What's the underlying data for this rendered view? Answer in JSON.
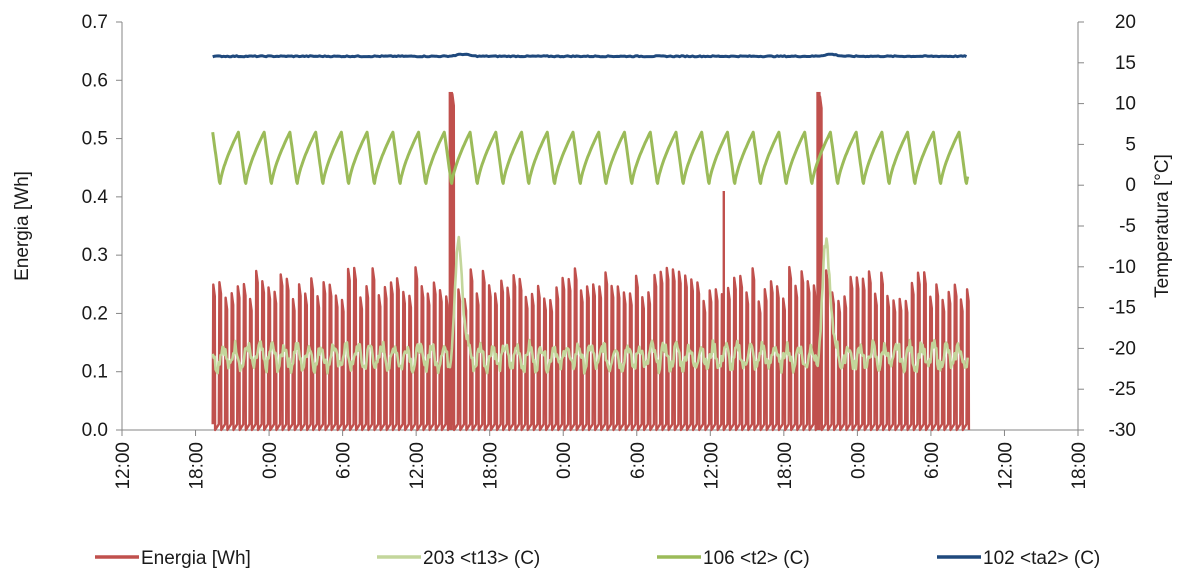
{
  "chart_data": {
    "type": "line",
    "title": "",
    "ylabel": "Energia [Wh]",
    "y2label": "Temperatura [°C]",
    "ylim": [
      0,
      0.7
    ],
    "y2lim": [
      -30,
      20
    ],
    "yticks": [
      "0.0",
      "0.1",
      "0.2",
      "0.3",
      "0.4",
      "0.5",
      "0.6",
      "0.7"
    ],
    "y2ticks": [
      "-30",
      "-25",
      "-20",
      "-15",
      "-10",
      "-5",
      "0",
      "5",
      "10",
      "15",
      "20"
    ],
    "x_unit": "hours",
    "xlim": [
      12,
      90
    ],
    "xticks": [
      {
        "t": 12,
        "label": "12:00"
      },
      {
        "t": 18,
        "label": "18:00"
      },
      {
        "t": 24,
        "label": "0:00"
      },
      {
        "t": 30,
        "label": "6:00"
      },
      {
        "t": 36,
        "label": "12:00"
      },
      {
        "t": 42,
        "label": "18:00"
      },
      {
        "t": 48,
        "label": "0:00"
      },
      {
        "t": 54,
        "label": "6:00"
      },
      {
        "t": 60,
        "label": "12:00"
      },
      {
        "t": 66,
        "label": "18:00"
      },
      {
        "t": 72,
        "label": "0:00"
      },
      {
        "t": 78,
        "label": "6:00"
      },
      {
        "t": 84,
        "label": "12:00"
      },
      {
        "t": 90,
        "label": "18:00"
      }
    ],
    "grid": false,
    "legend": "bottom",
    "data_range": [
      19.4,
      81.0
    ],
    "defrost_events": [
      38.8,
      68.8
    ],
    "spike_events": [
      {
        "t": 61.1,
        "value": 0.41
      }
    ],
    "series": [
      {
        "name": "Energia [Wh]",
        "axis": "left",
        "color": "#c0504d",
        "pattern": "compressor cycling",
        "cycle_period_h": 0.5,
        "cycle_peak": [
          0.22,
          0.28
        ],
        "cycle_low": 0.0,
        "defrost_peak": 0.58
      },
      {
        "name": "203 <t13> (C)",
        "axis": "right",
        "color": "#c3d69b",
        "baseline": -21,
        "range": [
          -23,
          -19
        ],
        "defrost_peak": -7,
        "cycle_period_h": 1.0
      },
      {
        "name": "106 <t2> (C)",
        "axis": "right",
        "color": "#9bbb59",
        "pattern": "sawtooth",
        "min": 0,
        "max": 6.5,
        "cycle_period_h": 2.1
      },
      {
        "name": "102 <ta2> (C)",
        "axis": "right",
        "color": "#1f497d",
        "baseline": 15.8,
        "range": [
          15.7,
          16.2
        ]
      }
    ]
  }
}
